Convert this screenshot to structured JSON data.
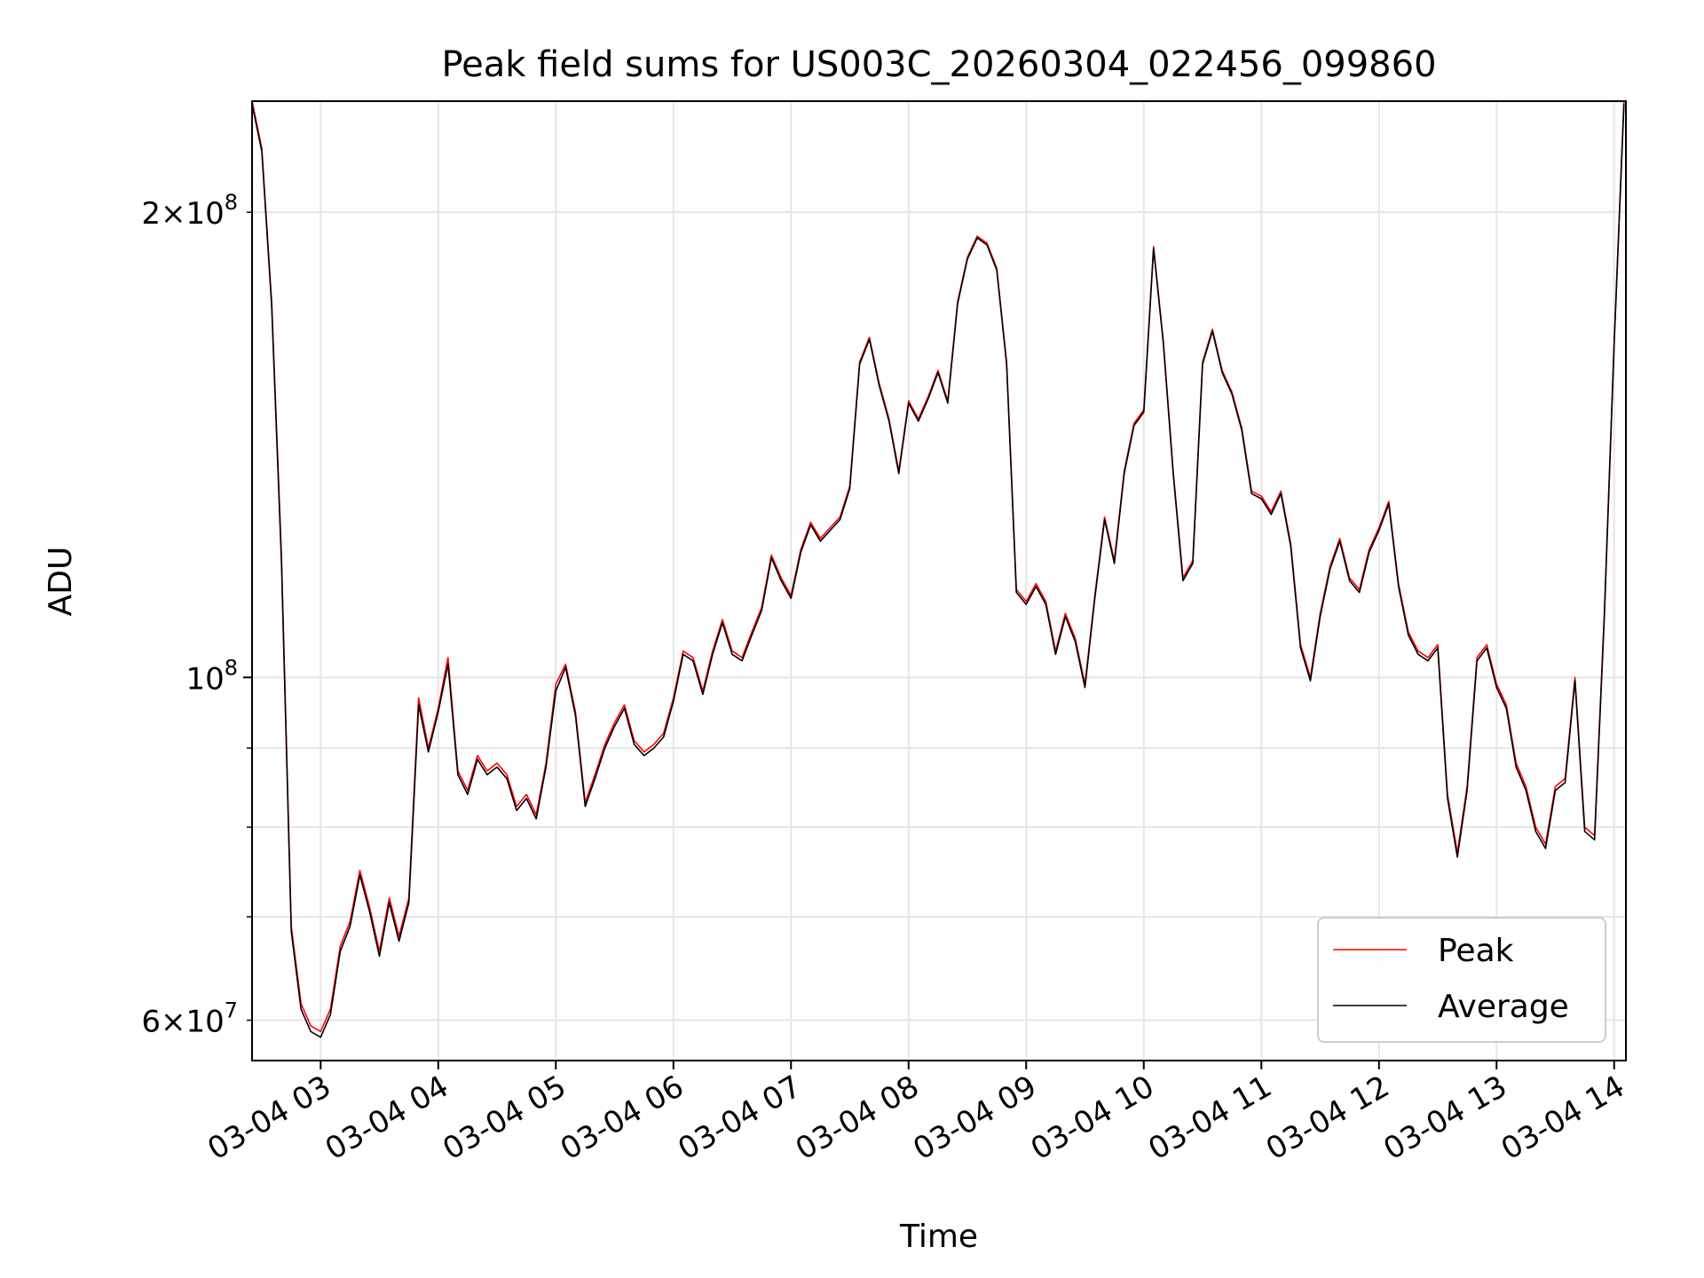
{
  "chart_data": {
    "type": "line",
    "title": "Peak field sums for US003C_20260304_022456_099860",
    "xlabel": "Time",
    "ylabel": "ADU",
    "yscale": "log",
    "ylim": [
      56500000,
      236000000
    ],
    "xlim": [
      "2026-03-04 02:25",
      "2026-03-04 14:06"
    ],
    "grid": true,
    "legend_position": "lower-right",
    "x_ticks": [
      {
        "t": "2026-03-04 03:00",
        "label": "03-04 03"
      },
      {
        "t": "2026-03-04 04:00",
        "label": "03-04 04"
      },
      {
        "t": "2026-03-04 05:00",
        "label": "03-04 05"
      },
      {
        "t": "2026-03-04 06:00",
        "label": "03-04 06"
      },
      {
        "t": "2026-03-04 07:00",
        "label": "03-04 07"
      },
      {
        "t": "2026-03-04 08:00",
        "label": "03-04 08"
      },
      {
        "t": "2026-03-04 09:00",
        "label": "03-04 09"
      },
      {
        "t": "2026-03-04 10:00",
        "label": "03-04 10"
      },
      {
        "t": "2026-03-04 11:00",
        "label": "03-04 11"
      },
      {
        "t": "2026-03-04 12:00",
        "label": "03-04 12"
      },
      {
        "t": "2026-03-04 13:00",
        "label": "03-04 13"
      },
      {
        "t": "2026-03-04 14:00",
        "label": "03-04 14"
      }
    ],
    "y_ticks_major": [
      {
        "value": 100000000,
        "base": "10",
        "exp": "8"
      }
    ],
    "y_ticks_minor": [
      {
        "value": 60000000,
        "mant": "6",
        "base": "10",
        "exp": "7"
      },
      {
        "value": 70000000
      },
      {
        "value": 80000000
      },
      {
        "value": 90000000
      },
      {
        "value": 200000000,
        "mant": "2",
        "base": "10",
        "exp": "8"
      }
    ],
    "x": [
      "2026-03-04 02:25",
      "2026-03-04 02:30",
      "2026-03-04 02:35",
      "2026-03-04 02:40",
      "2026-03-04 02:45",
      "2026-03-04 02:50",
      "2026-03-04 02:55",
      "2026-03-04 03:00",
      "2026-03-04 03:05",
      "2026-03-04 03:10",
      "2026-03-04 03:15",
      "2026-03-04 03:20",
      "2026-03-04 03:25",
      "2026-03-04 03:30",
      "2026-03-04 03:35",
      "2026-03-04 03:40",
      "2026-03-04 03:45",
      "2026-03-04 03:50",
      "2026-03-04 03:55",
      "2026-03-04 04:00",
      "2026-03-04 04:05",
      "2026-03-04 04:10",
      "2026-03-04 04:15",
      "2026-03-04 04:20",
      "2026-03-04 04:25",
      "2026-03-04 04:30",
      "2026-03-04 04:35",
      "2026-03-04 04:40",
      "2026-03-04 04:45",
      "2026-03-04 04:50",
      "2026-03-04 04:55",
      "2026-03-04 05:00",
      "2026-03-04 05:05",
      "2026-03-04 05:10",
      "2026-03-04 05:15",
      "2026-03-04 05:20",
      "2026-03-04 05:25",
      "2026-03-04 05:30",
      "2026-03-04 05:35",
      "2026-03-04 05:40",
      "2026-03-04 05:45",
      "2026-03-04 05:50",
      "2026-03-04 05:55",
      "2026-03-04 06:00",
      "2026-03-04 06:05",
      "2026-03-04 06:10",
      "2026-03-04 06:15",
      "2026-03-04 06:20",
      "2026-03-04 06:25",
      "2026-03-04 06:30",
      "2026-03-04 06:35",
      "2026-03-04 06:40",
      "2026-03-04 06:45",
      "2026-03-04 06:50",
      "2026-03-04 06:55",
      "2026-03-04 07:00",
      "2026-03-04 07:05",
      "2026-03-04 07:10",
      "2026-03-04 07:15",
      "2026-03-04 07:20",
      "2026-03-04 07:25",
      "2026-03-04 07:30",
      "2026-03-04 07:35",
      "2026-03-04 07:40",
      "2026-03-04 07:45",
      "2026-03-04 07:50",
      "2026-03-04 07:55",
      "2026-03-04 08:00",
      "2026-03-04 08:05",
      "2026-03-04 08:10",
      "2026-03-04 08:15",
      "2026-03-04 08:20",
      "2026-03-04 08:25",
      "2026-03-04 08:30",
      "2026-03-04 08:35",
      "2026-03-04 08:40",
      "2026-03-04 08:45",
      "2026-03-04 08:50",
      "2026-03-04 08:55",
      "2026-03-04 09:00",
      "2026-03-04 09:05",
      "2026-03-04 09:10",
      "2026-03-04 09:15",
      "2026-03-04 09:20",
      "2026-03-04 09:25",
      "2026-03-04 09:30",
      "2026-03-04 09:35",
      "2026-03-04 09:40",
      "2026-03-04 09:45",
      "2026-03-04 09:50",
      "2026-03-04 09:55",
      "2026-03-04 10:00",
      "2026-03-04 10:05",
      "2026-03-04 10:10",
      "2026-03-04 10:15",
      "2026-03-04 10:20",
      "2026-03-04 10:25",
      "2026-03-04 10:30",
      "2026-03-04 10:35",
      "2026-03-04 10:40",
      "2026-03-04 10:45",
      "2026-03-04 10:50",
      "2026-03-04 10:55",
      "2026-03-04 11:00",
      "2026-03-04 11:05",
      "2026-03-04 11:10",
      "2026-03-04 11:15",
      "2026-03-04 11:20",
      "2026-03-04 11:25",
      "2026-03-04 11:30",
      "2026-03-04 11:35",
      "2026-03-04 11:40",
      "2026-03-04 11:45",
      "2026-03-04 11:50",
      "2026-03-04 11:55",
      "2026-03-04 12:00",
      "2026-03-04 12:05",
      "2026-03-04 12:10",
      "2026-03-04 12:15",
      "2026-03-04 12:20",
      "2026-03-04 12:25",
      "2026-03-04 12:30",
      "2026-03-04 12:35",
      "2026-03-04 12:40",
      "2026-03-04 12:45",
      "2026-03-04 12:50",
      "2026-03-04 12:55",
      "2026-03-04 13:00",
      "2026-03-04 13:05",
      "2026-03-04 13:10",
      "2026-03-04 13:15",
      "2026-03-04 13:20",
      "2026-03-04 13:25",
      "2026-03-04 13:30",
      "2026-03-04 13:35",
      "2026-03-04 13:40",
      "2026-03-04 13:45",
      "2026-03-04 13:50",
      "2026-03-04 13:55",
      "2026-03-04 14:00",
      "2026-03-04 14:05"
    ],
    "series": [
      {
        "name": "Peak",
        "color": "#ff0000",
        "values": [
          236000000,
          220000000,
          175000000,
          120000000,
          69000000,
          61500000,
          59500000,
          59000000,
          61000000,
          67000000,
          69500000,
          75000000,
          71000000,
          66500000,
          72000000,
          68000000,
          72000000,
          97000000,
          90000000,
          95500000,
          103000000,
          87000000,
          84500000,
          89000000,
          87000000,
          88000000,
          86500000,
          82500000,
          84000000,
          81500000,
          88000000,
          99000000,
          102000000,
          95000000,
          83000000,
          86500000,
          90500000,
          93500000,
          96000000,
          91000000,
          89500000,
          90500000,
          92000000,
          97000000,
          104000000,
          103000000,
          98000000,
          104000000,
          109000000,
          104000000,
          103000000,
          107000000,
          111000000,
          120000000,
          116000000,
          113000000,
          121000000,
          126000000,
          123000000,
          125000000,
          127000000,
          133000000,
          160000000,
          166000000,
          155000000,
          147000000,
          136000000,
          151000000,
          147000000,
          152000000,
          158000000,
          151000000,
          175000000,
          187000000,
          193000000,
          191000000,
          184000000,
          160000000,
          114000000,
          112000000,
          115000000,
          112000000,
          104000000,
          110000000,
          106000000,
          99000000,
          113000000,
          127000000,
          119000000,
          136000000,
          146000000,
          149000000,
          190000000,
          165000000,
          136000000,
          116000000,
          119000000,
          160000000,
          168000000,
          158000000,
          153000000,
          145000000,
          132000000,
          131000000,
          128000000,
          132000000,
          122000000,
          105000000,
          100000000,
          110000000,
          118000000,
          123000000,
          116000000,
          114000000,
          121000000,
          125000000,
          130000000,
          115000000,
          107000000,
          104000000,
          103000000,
          105000000,
          84000000,
          77000000,
          85000000,
          103000000,
          105000000,
          99000000,
          96000000,
          88000000,
          85000000,
          80000000,
          78000000,
          85000000,
          86000000,
          100000000,
          80000000,
          79000000,
          110000000,
          165000000,
          236000000
        ]
      },
      {
        "name": "Average",
        "color": "#000000",
        "values": [
          235000000,
          219000000,
          174000000,
          119000000,
          68500000,
          61000000,
          59000000,
          58500000,
          60500000,
          66500000,
          69000000,
          74500000,
          70500000,
          66000000,
          71500000,
          67500000,
          71500000,
          96000000,
          89500000,
          95000000,
          102000000,
          86500000,
          84000000,
          88500000,
          86500000,
          87500000,
          86000000,
          82000000,
          83500000,
          81000000,
          87500000,
          98000000,
          101500000,
          94500000,
          82500000,
          86000000,
          90000000,
          93000000,
          95500000,
          90500000,
          89000000,
          90000000,
          91500000,
          96500000,
          103500000,
          102500000,
          97500000,
          103500000,
          108500000,
          103500000,
          102500000,
          106500000,
          110500000,
          119500000,
          115500000,
          112500000,
          120500000,
          125500000,
          122500000,
          124500000,
          126500000,
          132500000,
          159500000,
          165500000,
          154500000,
          146500000,
          135500000,
          150500000,
          146500000,
          151500000,
          157500000,
          150500000,
          174500000,
          186500000,
          192500000,
          190500000,
          183500000,
          159500000,
          113500000,
          111500000,
          114500000,
          111500000,
          103500000,
          109500000,
          105500000,
          98500000,
          112500000,
          126500000,
          118500000,
          135500000,
          145500000,
          148500000,
          189500000,
          164500000,
          135500000,
          115500000,
          118500000,
          159500000,
          167500000,
          157500000,
          152500000,
          144500000,
          131500000,
          130500000,
          127500000,
          131500000,
          121500000,
          104500000,
          99500000,
          109500000,
          117500000,
          122500000,
          115500000,
          113500000,
          120500000,
          124500000,
          129500000,
          114500000,
          106500000,
          103500000,
          102500000,
          104500000,
          83500000,
          76500000,
          84500000,
          102500000,
          104500000,
          98500000,
          95500000,
          87500000,
          84500000,
          79500000,
          77500000,
          84500000,
          85500000,
          99500000,
          79500000,
          78500000,
          109500000,
          164500000,
          235000000
        ]
      }
    ]
  }
}
